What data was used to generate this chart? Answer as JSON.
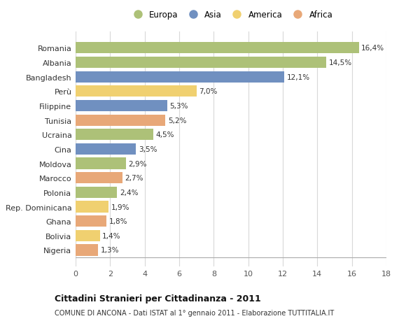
{
  "countries": [
    "Romania",
    "Albania",
    "Bangladesh",
    "Perù",
    "Filippine",
    "Tunisia",
    "Ucraina",
    "Cina",
    "Moldova",
    "Marocco",
    "Polonia",
    "Rep. Dominicana",
    "Ghana",
    "Bolivia",
    "Nigeria"
  ],
  "values": [
    16.4,
    14.5,
    12.1,
    7.0,
    5.3,
    5.2,
    4.5,
    3.5,
    2.9,
    2.7,
    2.4,
    1.9,
    1.8,
    1.4,
    1.3
  ],
  "continents": [
    "Europa",
    "Europa",
    "Asia",
    "America",
    "Asia",
    "Africa",
    "Europa",
    "Asia",
    "Europa",
    "Africa",
    "Europa",
    "America",
    "Africa",
    "America",
    "Africa"
  ],
  "colors": {
    "Europa": "#adc178",
    "Asia": "#7090c0",
    "America": "#f0d070",
    "Africa": "#e8a878"
  },
  "legend_order": [
    "Europa",
    "Asia",
    "America",
    "Africa"
  ],
  "title": "Cittadini Stranieri per Cittadinanza - 2011",
  "subtitle": "COMUNE DI ANCONA - Dati ISTAT al 1° gennaio 2011 - Elaborazione TUTTITALIA.IT",
  "xlim": [
    0,
    18
  ],
  "xticks": [
    0,
    2,
    4,
    6,
    8,
    10,
    12,
    14,
    16,
    18
  ],
  "bg_color": "#ffffff",
  "grid_color": "#d8d8d8",
  "bar_height": 0.78
}
